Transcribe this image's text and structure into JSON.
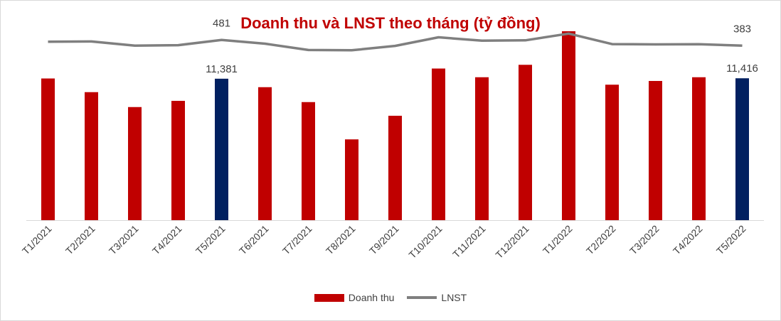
{
  "chart_data": {
    "type": "bar",
    "title": "Doanh thu và LNST theo tháng (tỷ đồng)",
    "categories": [
      "T1/2021",
      "T2/2021",
      "T3/2021",
      "T4/2021",
      "T5/2021",
      "T6/2021",
      "T7/2021",
      "T8/2021",
      "T9/2021",
      "T10/2021",
      "T11/2021",
      "T12/2021",
      "T1/2022",
      "T2/2022",
      "T3/2022",
      "T4/2022",
      "T5/2022"
    ],
    "series": [
      {
        "name": "Doanh thu",
        "type": "bar",
        "color": "#c00000",
        "highlight_color": "#002060",
        "values": [
          11400,
          10300,
          9100,
          9600,
          11381,
          10700,
          9500,
          6500,
          8400,
          12200,
          11500,
          12500,
          15200,
          10900,
          11200,
          11500,
          11416
        ]
      },
      {
        "name": "LNST",
        "type": "line",
        "color": "#7f7f7f",
        "values": [
          450,
          455,
          385,
          392,
          481,
          418,
          310,
          305,
          380,
          527,
          468,
          475,
          590,
          410,
          405,
          408,
          383
        ]
      }
    ],
    "highlighted_categories": [
      "T5/2021",
      "T5/2022"
    ],
    "data_labels": [
      {
        "category": "T5/2021",
        "bar_label": "11,381",
        "line_label": "481"
      },
      {
        "category": "T5/2022",
        "bar_label": "11,416",
        "line_label": "383"
      }
    ],
    "bar_axis_range": [
      0,
      16000
    ],
    "line_axis_range": [
      -2600,
      800
    ],
    "grid": false,
    "legend_position": "bottom"
  }
}
